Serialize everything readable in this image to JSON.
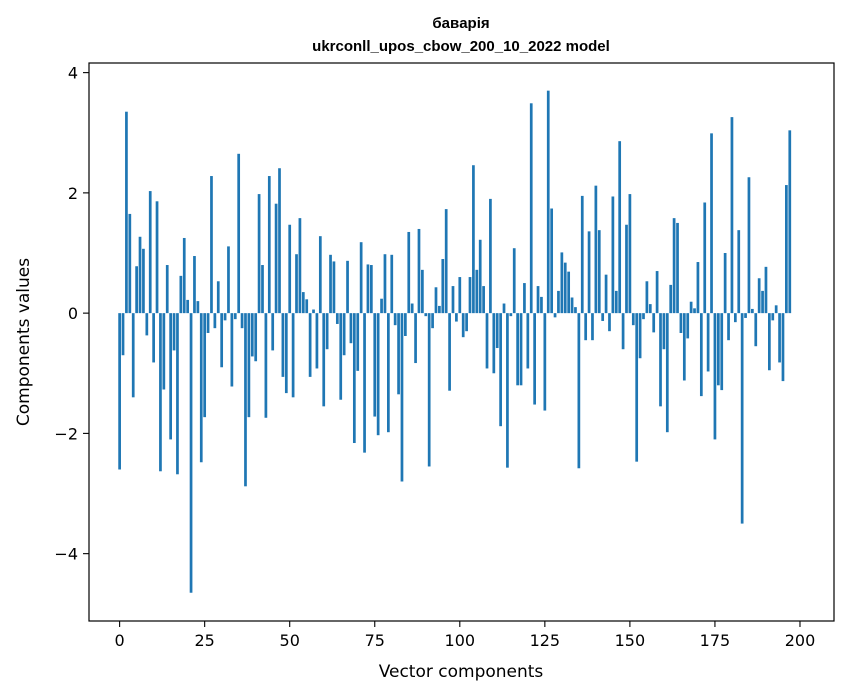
{
  "chart_data": {
    "type": "bar",
    "title": "бавapiя",
    "subtitle": "ukrconll_upos_cbow_200_10_2022 model",
    "xlabel": "Vector components",
    "ylabel": "Components values",
    "xlim": [
      -9,
      210
    ],
    "ylim": [
      -5.12,
      4.16
    ],
    "xticks": [
      0,
      25,
      50,
      75,
      100,
      125,
      150,
      175,
      200
    ],
    "yticks": [
      -4,
      -2,
      0,
      2,
      4
    ],
    "xtick_labels": [
      "0",
      "25",
      "50",
      "75",
      "100",
      "125",
      "150",
      "175",
      "200"
    ],
    "ytick_labels": [
      "−4",
      "−2",
      "0",
      "2",
      "4"
    ],
    "grid": false,
    "bar_color": "#1f77b4",
    "values": [
      -2.6,
      -0.7,
      3.35,
      1.65,
      -1.4,
      0.78,
      1.27,
      1.07,
      -0.37,
      2.03,
      -0.82,
      1.86,
      -2.63,
      -1.27,
      0.8,
      -2.1,
      -0.62,
      -2.68,
      0.62,
      1.25,
      0.22,
      -4.65,
      0.95,
      0.2,
      -2.48,
      -1.73,
      -0.33,
      2.28,
      -0.25,
      0.53,
      -0.9,
      -0.12,
      1.11,
      -1.22,
      -0.1,
      2.65,
      -0.25,
      -2.88,
      -1.73,
      -0.72,
      -0.8,
      1.98,
      0.8,
      -1.74,
      2.28,
      -0.62,
      1.82,
      2.41,
      -1.06,
      -1.33,
      1.47,
      -1.4,
      0.98,
      1.58,
      0.35,
      0.23,
      -1.06,
      0.06,
      -0.92,
      1.28,
      -1.55,
      -0.6,
      0.97,
      0.86,
      -0.18,
      -1.44,
      -0.7,
      0.87,
      -0.5,
      -2.16,
      -0.96,
      1.18,
      -2.32,
      0.81,
      0.8,
      -1.72,
      -2.03,
      0.24,
      0.98,
      -1.98,
      0.97,
      -0.2,
      -1.35,
      -2.8,
      -0.38,
      1.35,
      0.16,
      -0.83,
      1.4,
      0.72,
      -0.05,
      -2.55,
      -0.25,
      0.43,
      0.12,
      0.9,
      1.73,
      -1.29,
      0.45,
      -0.14,
      0.6,
      -0.4,
      -0.3,
      0.6,
      2.46,
      0.72,
      1.22,
      0.45,
      -0.92,
      1.9,
      -1.0,
      -0.58,
      -1.88,
      0.16,
      -2.57,
      -0.05,
      1.08,
      -1.2,
      -1.2,
      0.5,
      -0.92,
      3.49,
      -1.52,
      0.45,
      0.27,
      -1.62,
      3.7,
      1.74,
      -0.07,
      0.37,
      1.01,
      0.84,
      0.69,
      0.26,
      0.1,
      -2.58,
      1.95,
      -0.45,
      1.36,
      -0.45,
      2.12,
      1.38,
      -0.13,
      0.64,
      -0.3,
      1.94,
      0.37,
      2.86,
      -0.6,
      1.47,
      1.98,
      -0.2,
      -2.47,
      -0.75,
      -0.1,
      0.53,
      0.15,
      -0.32,
      0.7,
      -1.55,
      -0.6,
      -1.98,
      0.47,
      1.58,
      1.5,
      -0.33,
      -1.12,
      -0.42,
      0.19,
      0.08,
      0.85,
      -1.38,
      1.84,
      -0.97,
      2.99,
      -2.1,
      -1.2,
      -1.28,
      1.0,
      -0.45,
      3.26,
      -0.15,
      1.38,
      -3.5,
      -0.08,
      2.26,
      0.07,
      -0.55,
      0.58,
      0.37,
      0.77,
      -0.95,
      -0.12,
      0.13,
      -0.82,
      -1.13,
      2.13,
      3.04
    ]
  }
}
